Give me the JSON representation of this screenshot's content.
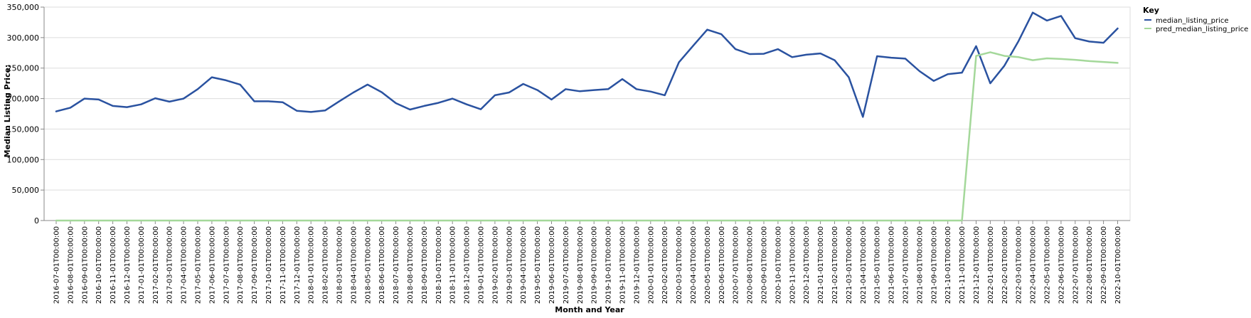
{
  "chart_data": {
    "type": "line",
    "xlabel": "Month and Year",
    "ylabel": "Median Listing Price:",
    "ylim": [
      0,
      350000
    ],
    "y_ticks": [
      "0",
      "50,000",
      "100,000",
      "150,000",
      "200,000",
      "250,000",
      "300,000",
      "350,000"
    ],
    "y_tick_values": [
      0,
      50000,
      100000,
      150000,
      200000,
      250000,
      300000,
      350000
    ],
    "grid": true,
    "legend": {
      "title": "Key",
      "placement": "top-right"
    },
    "x": [
      "2016-07-01T00:00:00",
      "2016-08-01T00:00:00",
      "2016-09-01T00:00:00",
      "2016-10-01T00:00:00",
      "2016-11-01T00:00:00",
      "2016-12-01T00:00:00",
      "2017-01-01T00:00:00",
      "2017-02-01T00:00:00",
      "2017-03-01T00:00:00",
      "2017-04-01T00:00:00",
      "2017-05-01T00:00:00",
      "2017-06-01T00:00:00",
      "2017-07-01T00:00:00",
      "2017-08-01T00:00:00",
      "2017-09-01T00:00:00",
      "2017-10-01T00:00:00",
      "2017-11-01T00:00:00",
      "2017-12-01T00:00:00",
      "2018-01-01T00:00:00",
      "2018-02-01T00:00:00",
      "2018-03-01T00:00:00",
      "2018-04-01T00:00:00",
      "2018-05-01T00:00:00",
      "2018-06-01T00:00:00",
      "2018-07-01T00:00:00",
      "2018-08-01T00:00:00",
      "2018-09-01T00:00:00",
      "2018-10-01T00:00:00",
      "2018-11-01T00:00:00",
      "2018-12-01T00:00:00",
      "2019-01-01T00:00:00",
      "2019-02-01T00:00:00",
      "2019-03-01T00:00:00",
      "2019-04-01T00:00:00",
      "2019-05-01T00:00:00",
      "2019-06-01T00:00:00",
      "2019-07-01T00:00:00",
      "2019-08-01T00:00:00",
      "2019-09-01T00:00:00",
      "2019-10-01T00:00:00",
      "2019-11-01T00:00:00",
      "2019-12-01T00:00:00",
      "2020-01-01T00:00:00",
      "2020-02-01T00:00:00",
      "2020-03-01T00:00:00",
      "2020-04-01T00:00:00",
      "2020-05-01T00:00:00",
      "2020-06-01T00:00:00",
      "2020-07-01T00:00:00",
      "2020-08-01T00:00:00",
      "2020-09-01T00:00:00",
      "2020-10-01T00:00:00",
      "2020-11-01T00:00:00",
      "2020-12-01T00:00:00",
      "2021-01-01T00:00:00",
      "2021-02-01T00:00:00",
      "2021-03-01T00:00:00",
      "2021-04-01T00:00:00",
      "2021-05-01T00:00:00",
      "2021-06-01T00:00:00",
      "2021-07-01T00:00:00",
      "2021-08-01T00:00:00",
      "2021-09-01T00:00:00",
      "2021-10-01T00:00:00",
      "2021-11-01T00:00:00",
      "2021-12-01T00:00:00",
      "2022-01-01T00:00:00",
      "2022-02-01T00:00:00",
      "2022-03-01T00:00:00",
      "2022-04-01T00:00:00",
      "2022-05-01T00:00:00",
      "2022-06-01T00:00:00",
      "2022-07-01T00:00:00",
      "2022-08-01T00:00:00",
      "2022-09-01T00:00:00",
      "2022-10-01T00:00:00"
    ],
    "series": [
      {
        "name": "median_listing_price",
        "color": "#2a52a0",
        "values": [
          179000,
          185000,
          200000,
          198500,
          188000,
          186000,
          190500,
          200500,
          195000,
          200000,
          215500,
          235000,
          230000,
          223000,
          195500,
          195500,
          194000,
          180000,
          178000,
          180500,
          195500,
          210000,
          223000,
          210500,
          192500,
          182000,
          188000,
          193000,
          200000,
          190500,
          182500,
          205500,
          210000,
          224000,
          214000,
          198500,
          215500,
          212000,
          214000,
          215500,
          232000,
          215500,
          211500,
          205500,
          259500,
          286500,
          313000,
          305500,
          281000,
          273000,
          273500,
          281000,
          268000,
          272000,
          274000,
          263000,
          235000,
          170000,
          269500,
          267000,
          265500,
          245000,
          229000,
          240000,
          242500,
          286000,
          225000,
          254000,
          294500,
          341000,
          328000,
          335500,
          299000,
          293500,
          291500,
          315000
        ]
      },
      {
        "name": "pred_median_listing_price",
        "color": "#a4d89a",
        "values": [
          0,
          0,
          0,
          0,
          0,
          0,
          0,
          0,
          0,
          0,
          0,
          0,
          0,
          0,
          0,
          0,
          0,
          0,
          0,
          0,
          0,
          0,
          0,
          0,
          0,
          0,
          0,
          0,
          0,
          0,
          0,
          0,
          0,
          0,
          0,
          0,
          0,
          0,
          0,
          0,
          0,
          0,
          0,
          0,
          0,
          0,
          0,
          0,
          0,
          0,
          0,
          0,
          0,
          0,
          0,
          0,
          0,
          0,
          0,
          0,
          0,
          0,
          0,
          0,
          0,
          270000,
          276000,
          270000,
          268000,
          263000,
          266000,
          265000,
          263500,
          261500,
          260000,
          258500
        ]
      }
    ]
  }
}
